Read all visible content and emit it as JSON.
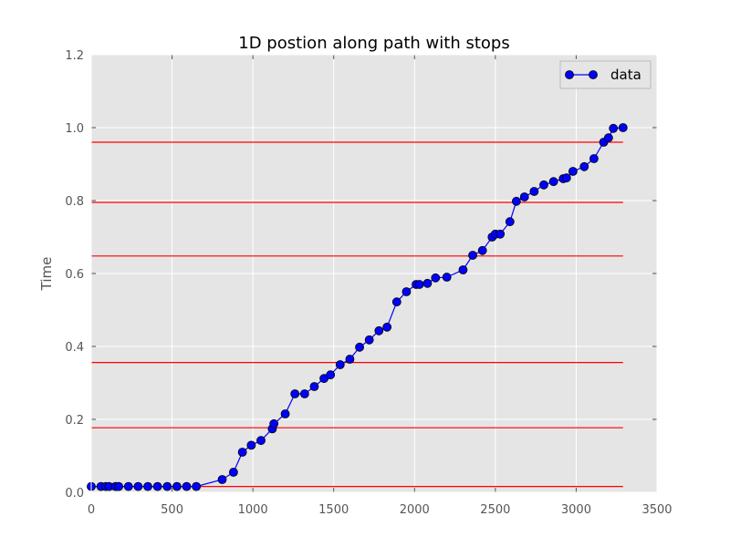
{
  "chart_data": {
    "type": "line",
    "title": "1D postion along path with stops",
    "xlabel": "",
    "ylabel": "Time",
    "xlim": [
      0,
      3500
    ],
    "ylim": [
      0,
      1.2
    ],
    "xticks": [
      "0",
      "500",
      "1000",
      "1500",
      "2000",
      "2500",
      "3000",
      "3500"
    ],
    "yticks": [
      "0.0",
      "0.2",
      "0.4",
      "0.6",
      "0.8",
      "1.0",
      "1.2"
    ],
    "grid": true,
    "legend_position": "top-right",
    "background": "#e5e5e5",
    "series": [
      {
        "name": "data",
        "color": "#0000ff",
        "marker": "circle",
        "x": [
          0,
          60,
          90,
          110,
          150,
          170,
          230,
          290,
          350,
          410,
          470,
          530,
          590,
          650,
          810,
          880,
          935,
          990,
          1050,
          1120,
          1130,
          1200,
          1260,
          1320,
          1380,
          1440,
          1480,
          1540,
          1600,
          1660,
          1720,
          1780,
          1830,
          1890,
          1950,
          2010,
          2030,
          2080,
          2130,
          2200,
          2300,
          2360,
          2420,
          2480,
          2500,
          2530,
          2590,
          2630,
          2680,
          2740,
          2800,
          2860,
          2920,
          2940,
          2980,
          3050,
          3110,
          3170,
          3200,
          3230,
          3290
        ],
        "y": [
          0.016,
          0.016,
          0.016,
          0.016,
          0.016,
          0.016,
          0.016,
          0.016,
          0.016,
          0.016,
          0.016,
          0.016,
          0.016,
          0.016,
          0.035,
          0.055,
          0.11,
          0.129,
          0.142,
          0.174,
          0.188,
          0.215,
          0.27,
          0.27,
          0.29,
          0.312,
          0.322,
          0.35,
          0.365,
          0.398,
          0.418,
          0.443,
          0.453,
          0.522,
          0.55,
          0.57,
          0.57,
          0.573,
          0.588,
          0.59,
          0.61,
          0.65,
          0.663,
          0.7,
          0.708,
          0.708,
          0.742,
          0.798,
          0.81,
          0.825,
          0.843,
          0.852,
          0.86,
          0.862,
          0.88,
          0.893,
          0.915,
          0.96,
          0.972,
          0.998,
          1.0
        ]
      }
    ],
    "stop_lines": {
      "color": "#ff0000",
      "y": [
        0.016,
        0.177,
        0.356,
        0.648,
        0.795,
        0.96
      ],
      "x_range": [
        0,
        3290
      ]
    }
  }
}
